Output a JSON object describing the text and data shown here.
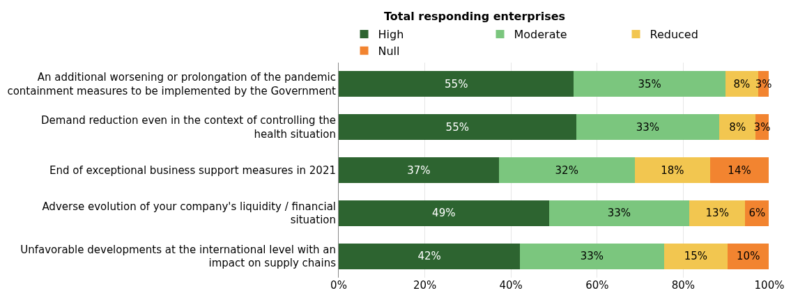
{
  "chart_data": {
    "type": "bar",
    "orientation": "horizontal",
    "stacked": true,
    "title": "Total responding enterprises",
    "categories": [
      "An additional worsening or prolongation of the pandemic containment measures to be implemented by the Government",
      "Demand reduction even in the context of controlling the health situation",
      "End of exceptional business support measures in 2021",
      "Adverse evolution of your company's liquidity / financial situation",
      "Unfavorable developments at the international level with an impact on supply chains"
    ],
    "series": [
      {
        "name": "High",
        "color": "#2d6430",
        "values": [
          54.6,
          55.1,
          37.2,
          48.8,
          42.1
        ],
        "value_labels": [
          "55%",
          "55%",
          "37%",
          "49%",
          "42%"
        ]
      },
      {
        "name": "Moderate",
        "color": "#7bc67e",
        "values": [
          35.2,
          33.3,
          31.5,
          32.6,
          33.4
        ],
        "value_labels": [
          "35%",
          "33%",
          "32%",
          "33%",
          "33%"
        ]
      },
      {
        "name": "Reduced",
        "color": "#f2c650",
        "values": [
          7.6,
          8.4,
          17.6,
          13.0,
          14.8
        ],
        "value_labels": [
          "8%",
          "8%",
          "18%",
          "13%",
          "15%"
        ]
      },
      {
        "name": "Null",
        "color": "#f28430",
        "values": [
          2.5,
          3.0,
          13.5,
          5.5,
          9.6
        ],
        "value_labels": [
          "3%",
          "3%",
          "14%",
          "6%",
          "10%"
        ]
      }
    ],
    "xlim": [
      0,
      100
    ],
    "xticks": [
      {
        "value": 0,
        "label": "0%"
      },
      {
        "value": 20,
        "label": "20%"
      },
      {
        "value": 40,
        "label": "40%"
      },
      {
        "value": 60,
        "label": "60%"
      },
      {
        "value": 80,
        "label": "80%"
      },
      {
        "value": 100,
        "label": "100%"
      }
    ],
    "grid": "x",
    "legend": "top"
  }
}
